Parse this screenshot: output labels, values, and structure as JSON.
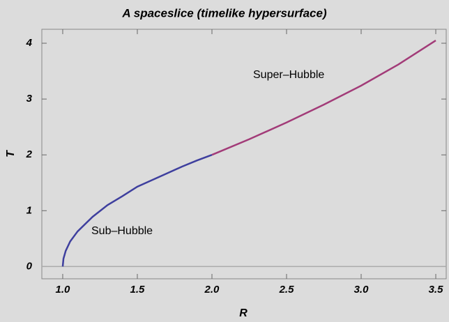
{
  "chart_data": {
    "type": "line",
    "title": "A spaceslice (timelike hypersurface)",
    "x_label": "R",
    "y_label": "T",
    "series": [
      {
        "color": "#3e3f9e",
        "x": [
          1.0,
          1.005,
          1.02,
          1.05,
          1.1,
          1.2,
          1.3,
          1.4,
          1.5,
          1.6,
          1.7,
          1.8,
          1.9,
          2.0
        ],
        "values": [
          0,
          0.14,
          0.28,
          0.45,
          0.63,
          0.89,
          1.1,
          1.26,
          1.43,
          1.55,
          1.67,
          1.79,
          1.9,
          2.0
        ]
      },
      {
        "color": "#a23b78",
        "x": [
          2.0,
          2.25,
          2.5,
          2.75,
          3.0,
          3.25,
          3.5
        ],
        "values": [
          2.0,
          2.28,
          2.58,
          2.9,
          3.24,
          3.62,
          4.05
        ]
      }
    ],
    "annotations": [
      "Super–Hubble",
      "Sub–Hubble"
    ],
    "xlim": [
      0.86,
      3.57
    ],
    "ylim": [
      -0.22,
      4.25
    ],
    "xticks": [
      {
        "value": 1,
        "label": "1.0"
      },
      1.5,
      {
        "value": 2,
        "label": "2.0"
      },
      2.5,
      {
        "value": 3,
        "label": "3.0"
      },
      3.5
    ],
    "yticks": [
      0,
      1,
      2,
      3,
      4
    ]
  }
}
